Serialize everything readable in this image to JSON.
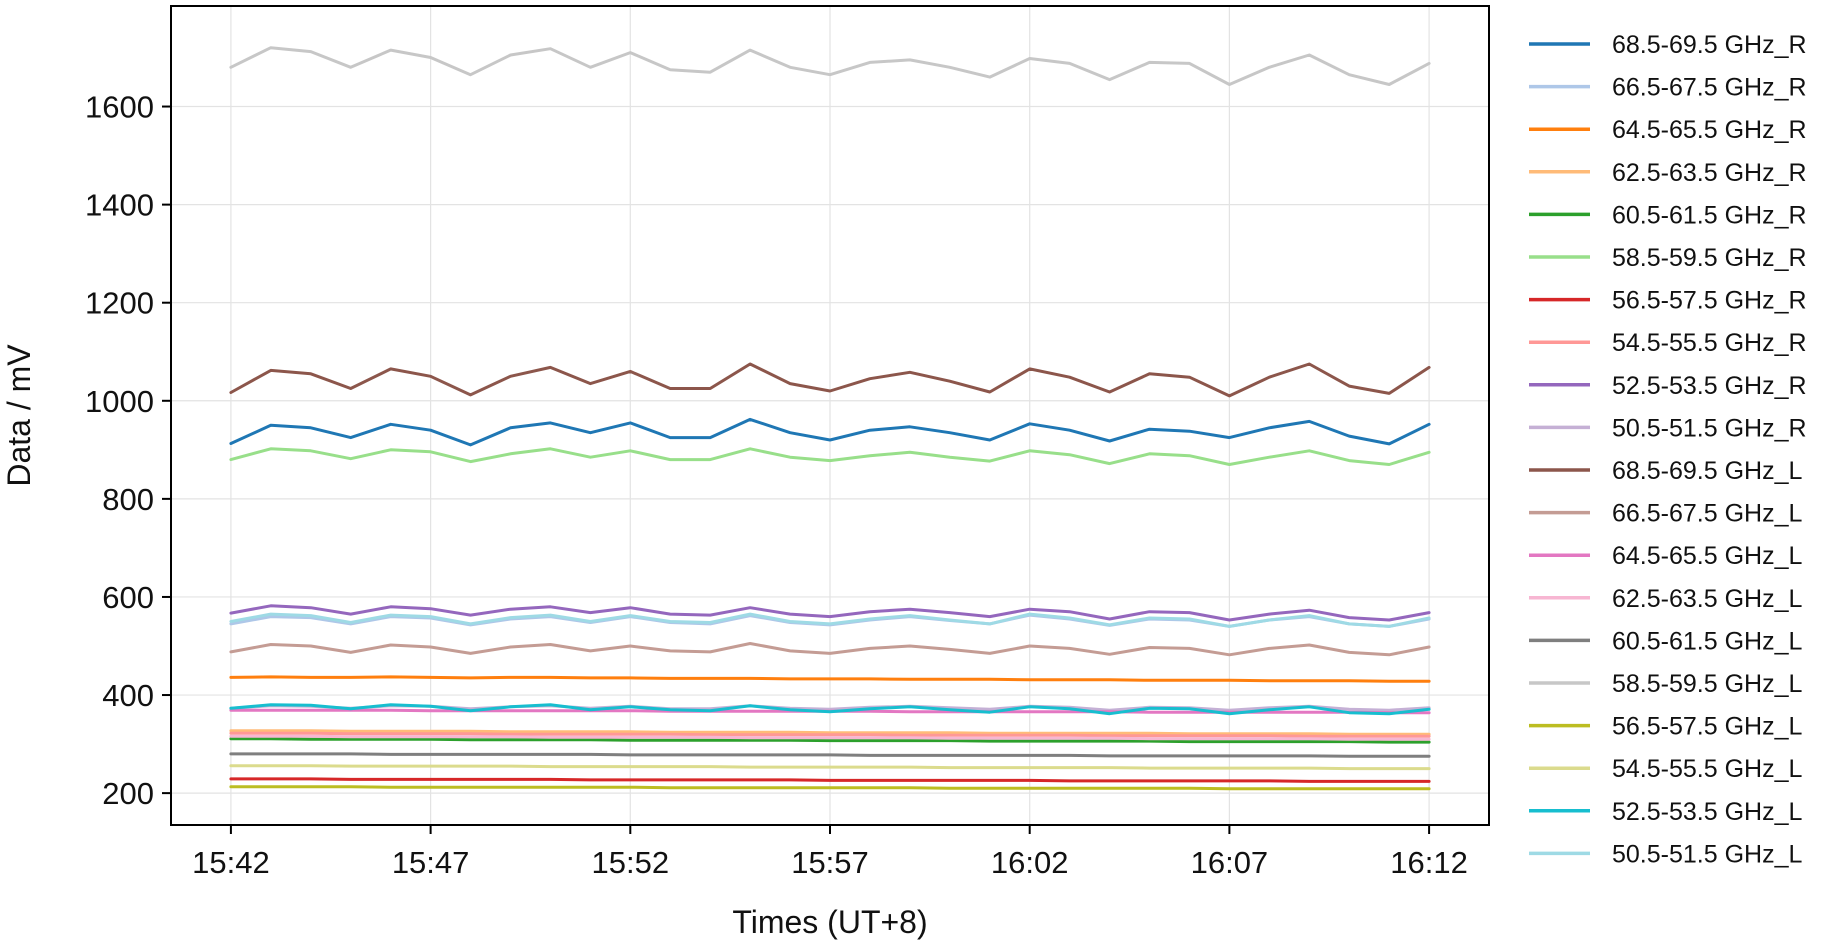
{
  "chart_data": {
    "type": "line",
    "xlabel": "Times (UT+8)",
    "ylabel": "Data / mV",
    "x_range": [
      "15:40:30",
      "16:13:30"
    ],
    "ylim": [
      135,
      1805
    ],
    "x_ticks": [
      "15:42",
      "15:47",
      "15:52",
      "15:57",
      "16:02",
      "16:07",
      "16:12"
    ],
    "y_ticks": [
      200,
      400,
      600,
      800,
      1000,
      1200,
      1400,
      1600
    ],
    "grid": true,
    "legend_position": "outside-right",
    "x_times": [
      "15:42",
      "15:43",
      "15:44",
      "15:45",
      "15:46",
      "15:47",
      "15:48",
      "15:49",
      "15:50",
      "15:51",
      "15:52",
      "15:53",
      "15:54",
      "15:55",
      "15:56",
      "15:57",
      "15:58",
      "15:59",
      "16:00",
      "16:01",
      "16:02",
      "16:03",
      "16:04",
      "16:05",
      "16:06",
      "16:07",
      "16:08",
      "16:09",
      "16:10",
      "16:11",
      "16:12"
    ],
    "series": [
      {
        "name": "68.5-69.5 GHz_R",
        "color": "#1f77b4",
        "values": [
          913,
          950,
          945,
          925,
          952,
          940,
          910,
          945,
          955,
          935,
          955,
          925,
          925,
          962,
          935,
          920,
          940,
          947,
          935,
          920,
          953,
          940,
          918,
          942,
          938,
          925,
          945,
          958,
          928,
          912,
          952
        ]
      },
      {
        "name": "66.5-67.5 GHz_R",
        "color": "#aec7e8",
        "values": [
          545,
          560,
          558,
          545,
          560,
          557,
          543,
          555,
          560,
          548,
          560,
          548,
          545,
          562,
          548,
          543,
          553,
          560,
          552,
          545,
          563,
          555,
          542,
          555,
          553,
          540,
          553,
          560,
          545,
          540,
          555
        ]
      },
      {
        "name": "64.5-65.5 GHz_R",
        "color": "#ff7f0e",
        "values": [
          436,
          437,
          436,
          436,
          437,
          436,
          435,
          436,
          436,
          435,
          435,
          434,
          434,
          434,
          433,
          433,
          433,
          432,
          432,
          432,
          431,
          431,
          431,
          430,
          430,
          430,
          429,
          429,
          429,
          428,
          428
        ]
      },
      {
        "name": "62.5-63.5 GHz_R",
        "color": "#ffbb78",
        "values": [
          327,
          327,
          327,
          326,
          326,
          326,
          326,
          325,
          325,
          325,
          325,
          324,
          324,
          324,
          324,
          323,
          323,
          323,
          323,
          322,
          322,
          322,
          322,
          322,
          321,
          321,
          321,
          321,
          320,
          320,
          320
        ]
      },
      {
        "name": "60.5-61.5 GHz_R",
        "color": "#2ca02c",
        "values": [
          311,
          311,
          310,
          310,
          310,
          310,
          309,
          309,
          309,
          309,
          308,
          308,
          308,
          308,
          308,
          307,
          307,
          307,
          307,
          306,
          306,
          306,
          306,
          306,
          305,
          305,
          305,
          305,
          305,
          304,
          304
        ]
      },
      {
        "name": "58.5-59.5 GHz_R",
        "color": "#98df8a",
        "values": [
          880,
          902,
          898,
          882,
          900,
          896,
          876,
          892,
          902,
          885,
          898,
          880,
          880,
          902,
          885,
          878,
          888,
          895,
          885,
          877,
          898,
          890,
          872,
          892,
          888,
          870,
          885,
          898,
          878,
          870,
          895
        ]
      },
      {
        "name": "56.5-57.5 GHz_R",
        "color": "#d62728",
        "values": [
          229,
          229,
          229,
          228,
          228,
          228,
          228,
          228,
          228,
          227,
          227,
          227,
          227,
          227,
          227,
          226,
          226,
          226,
          226,
          226,
          226,
          225,
          225,
          225,
          225,
          225,
          225,
          224,
          224,
          224,
          224
        ]
      },
      {
        "name": "54.5-55.5 GHz_R",
        "color": "#ff9896",
        "values": [
          322,
          322,
          322,
          321,
          321,
          321,
          321,
          320,
          320,
          320,
          320,
          320,
          319,
          319,
          319,
          319,
          319,
          318,
          318,
          318,
          318,
          318,
          317,
          317,
          317,
          317,
          317,
          316,
          316,
          316,
          316
        ]
      },
      {
        "name": "52.5-53.5 GHz_R",
        "color": "#9467bd",
        "values": [
          567,
          582,
          578,
          565,
          580,
          576,
          563,
          575,
          580,
          568,
          578,
          565,
          563,
          578,
          565,
          560,
          570,
          575,
          568,
          560,
          575,
          570,
          555,
          570,
          568,
          553,
          565,
          573,
          558,
          553,
          568
        ]
      },
      {
        "name": "50.5-51.5 GHz_R",
        "color": "#c5b0d5",
        "values": [
          373,
          378,
          377,
          373,
          378,
          377,
          372,
          376,
          378,
          373,
          377,
          372,
          372,
          378,
          373,
          371,
          375,
          377,
          374,
          371,
          377,
          375,
          369,
          375,
          374,
          369,
          374,
          377,
          371,
          369,
          374
        ]
      },
      {
        "name": "68.5-69.5 GHz_L",
        "color": "#8c564b",
        "values": [
          1017,
          1062,
          1055,
          1025,
          1065,
          1050,
          1012,
          1050,
          1068,
          1035,
          1060,
          1025,
          1025,
          1075,
          1035,
          1020,
          1045,
          1058,
          1040,
          1018,
          1065,
          1048,
          1018,
          1055,
          1048,
          1010,
          1048,
          1075,
          1030,
          1015,
          1068
        ]
      },
      {
        "name": "66.5-67.5 GHz_L",
        "color": "#c49c94",
        "values": [
          488,
          503,
          500,
          487,
          502,
          498,
          485,
          498,
          503,
          490,
          500,
          490,
          488,
          505,
          490,
          485,
          495,
          500,
          493,
          485,
          500,
          495,
          483,
          497,
          495,
          482,
          495,
          502,
          487,
          482,
          498
        ]
      },
      {
        "name": "64.5-65.5 GHz_L",
        "color": "#e377c2",
        "values": [
          369,
          369,
          369,
          369,
          369,
          368,
          368,
          368,
          368,
          368,
          368,
          367,
          367,
          367,
          367,
          367,
          367,
          366,
          366,
          366,
          366,
          366,
          366,
          365,
          365,
          365,
          365,
          365,
          365,
          364,
          364
        ]
      },
      {
        "name": "62.5-63.5 GHz_L",
        "color": "#f7b6d2",
        "values": [
          316,
          316,
          316,
          315,
          315,
          315,
          315,
          315,
          314,
          314,
          314,
          314,
          314,
          313,
          313,
          313,
          313,
          313,
          312,
          312,
          312,
          312,
          312,
          311,
          311,
          311,
          311,
          311,
          310,
          310,
          310
        ]
      },
      {
        "name": "60.5-61.5 GHz_L",
        "color": "#7f7f7f",
        "values": [
          280,
          280,
          280,
          280,
          279,
          279,
          279,
          279,
          279,
          279,
          278,
          278,
          278,
          278,
          278,
          278,
          277,
          277,
          277,
          277,
          277,
          277,
          276,
          276,
          276,
          276,
          276,
          276,
          275,
          275,
          275
        ]
      },
      {
        "name": "58.5-59.5 GHz_L",
        "color": "#c7c7c7",
        "values": [
          1680,
          1720,
          1712,
          1680,
          1715,
          1700,
          1665,
          1705,
          1718,
          1680,
          1710,
          1675,
          1670,
          1715,
          1680,
          1665,
          1690,
          1695,
          1680,
          1660,
          1698,
          1688,
          1655,
          1690,
          1688,
          1645,
          1680,
          1705,
          1665,
          1645,
          1688
        ]
      },
      {
        "name": "56.5-57.5 GHz_L",
        "color": "#bcbd22",
        "values": [
          213,
          213,
          213,
          213,
          212,
          212,
          212,
          212,
          212,
          212,
          212,
          211,
          211,
          211,
          211,
          211,
          211,
          211,
          210,
          210,
          210,
          210,
          210,
          210,
          210,
          209,
          209,
          209,
          209,
          209,
          209
        ]
      },
      {
        "name": "54.5-55.5 GHz_L",
        "color": "#dbdb8d",
        "values": [
          256,
          256,
          256,
          255,
          255,
          255,
          255,
          255,
          254,
          254,
          254,
          254,
          254,
          253,
          253,
          253,
          253,
          253,
          252,
          252,
          252,
          252,
          252,
          251,
          251,
          251,
          251,
          251,
          250,
          250,
          250
        ]
      },
      {
        "name": "52.5-53.5 GHz_L",
        "color": "#17becf",
        "values": [
          373,
          380,
          379,
          372,
          380,
          377,
          368,
          376,
          380,
          370,
          376,
          370,
          368,
          378,
          370,
          366,
          372,
          376,
          370,
          365,
          376,
          372,
          362,
          373,
          372,
          362,
          370,
          376,
          364,
          362,
          371
        ]
      },
      {
        "name": "50.5-51.5 GHz_L",
        "color": "#9edae5",
        "values": [
          550,
          565,
          562,
          548,
          563,
          560,
          545,
          558,
          563,
          550,
          562,
          550,
          548,
          565,
          550,
          545,
          555,
          562,
          553,
          545,
          565,
          557,
          543,
          557,
          555,
          540,
          553,
          562,
          545,
          540,
          557
        ]
      }
    ]
  }
}
